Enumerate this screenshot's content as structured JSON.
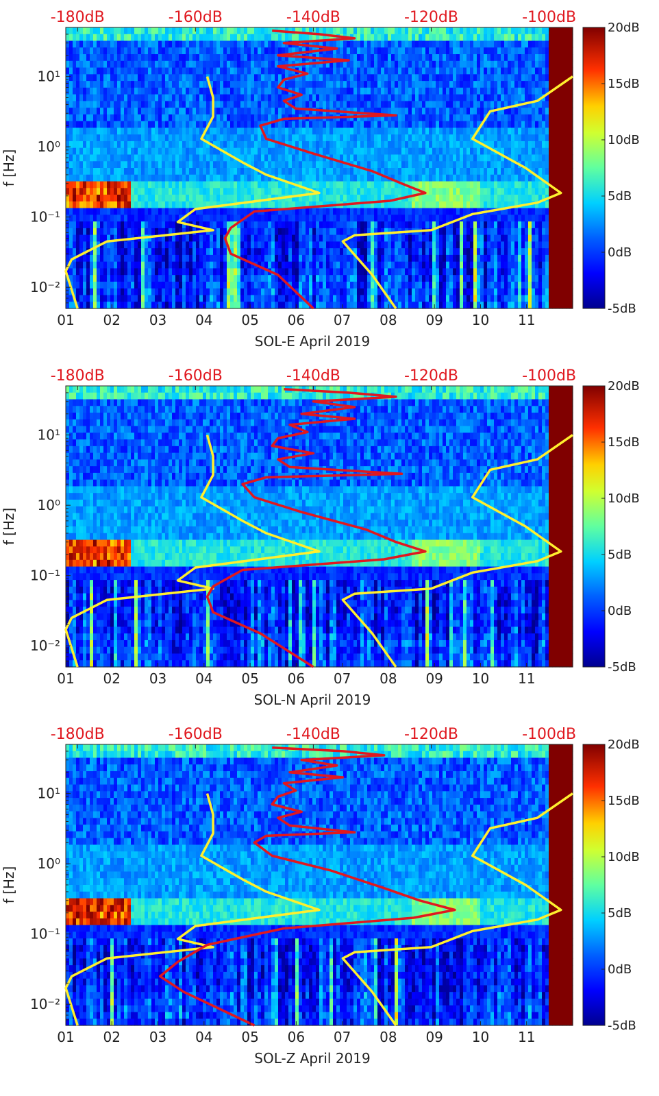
{
  "figure": {
    "description_free": true
  },
  "colorbar": {
    "ticks": [
      {
        "value": 20,
        "label": "20dB"
      },
      {
        "value": 15,
        "label": "15dB"
      },
      {
        "value": 10,
        "label": "10dB"
      },
      {
        "value": 5,
        "label": "5dB"
      },
      {
        "value": 0,
        "label": "0dB"
      },
      {
        "value": -5,
        "label": "-5dB"
      }
    ],
    "range": [
      -5,
      20
    ],
    "colors": [
      "#00008f",
      "#0000ff",
      "#0080ff",
      "#00ffff",
      "#80ff80",
      "#ffff00",
      "#ff8000",
      "#ff0000",
      "#800000"
    ]
  },
  "line_colors": {
    "noise_model": "#ffef2e",
    "psd": "#e0181f",
    "top_axis": "#e0181f"
  },
  "chart_data": [
    {
      "type": "heatmap",
      "xlabel": "SOL-E April 2019",
      "ylabel": "f [Hz]",
      "x_ticks": [
        "01",
        "02",
        "03",
        "04",
        "05",
        "06",
        "07",
        "08",
        "09",
        "10",
        "11"
      ],
      "xlim": [
        1,
        12
      ],
      "y_ticks": [
        {
          "value": 10,
          "label": "10¹"
        },
        {
          "value": 1,
          "label": "10⁰"
        },
        {
          "value": 0.1,
          "label": "10⁻¹"
        },
        {
          "value": 0.01,
          "label": "10⁻²"
        }
      ],
      "ylim": [
        0.005,
        50
      ],
      "top_axis_ticks": [
        {
          "value": -180,
          "label": "-180dB"
        },
        {
          "value": -160,
          "label": "-160dB"
        },
        {
          "value": -140,
          "label": "-140dB"
        },
        {
          "value": -120,
          "label": "-120dB"
        },
        {
          "value": -100,
          "label": "-100dB"
        }
      ],
      "top_axis_range": [
        -182,
        -96
      ],
      "noise_model_low": [
        [
          -158,
          10
        ],
        [
          -157,
          5
        ],
        [
          -157,
          2.7
        ],
        [
          -159,
          1.3
        ],
        [
          -152,
          0.6
        ],
        [
          -148,
          0.4
        ],
        [
          -139,
          0.22
        ],
        [
          -160,
          0.13
        ],
        [
          -163,
          0.085
        ],
        [
          -157,
          0.065
        ],
        [
          -175,
          0.045
        ],
        [
          -181,
          0.025
        ],
        [
          -182,
          0.017
        ],
        [
          -180,
          0.005
        ]
      ],
      "noise_model_high": [
        [
          -96,
          10
        ],
        [
          -102,
          4.5
        ],
        [
          -110,
          3.2
        ],
        [
          -113,
          1.3
        ],
        [
          -104,
          0.5
        ],
        [
          -98,
          0.22
        ],
        [
          -102,
          0.16
        ],
        [
          -113,
          0.11
        ],
        [
          -120,
          0.065
        ],
        [
          -133,
          0.055
        ],
        [
          -135,
          0.045
        ],
        [
          -130,
          0.015
        ],
        [
          -126,
          0.005
        ]
      ],
      "psd_curve": [
        [
          -147,
          45
        ],
        [
          -139,
          40
        ],
        [
          -133,
          35
        ],
        [
          -145,
          30
        ],
        [
          -136,
          25
        ],
        [
          -146,
          20
        ],
        [
          -134,
          17
        ],
        [
          -146,
          14
        ],
        [
          -141,
          11
        ],
        [
          -145,
          9
        ],
        [
          -146,
          7
        ],
        [
          -142,
          5.5
        ],
        [
          -145,
          4.5
        ],
        [
          -143,
          3.5
        ],
        [
          -126,
          2.8
        ],
        [
          -145,
          2.5
        ],
        [
          -149,
          2
        ],
        [
          -148,
          1.3
        ],
        [
          -140,
          0.8
        ],
        [
          -130,
          0.45
        ],
        [
          -125,
          0.3
        ],
        [
          -121,
          0.22
        ],
        [
          -127,
          0.17
        ],
        [
          -150,
          0.12
        ],
        [
          -154,
          0.07
        ],
        [
          -155,
          0.05
        ],
        [
          -154,
          0.03
        ],
        [
          -146,
          0.015
        ],
        [
          -140,
          0.005
        ]
      ]
    },
    {
      "type": "heatmap",
      "xlabel": "SOL-N April 2019",
      "ylabel": "f [Hz]",
      "x_ticks": [
        "01",
        "02",
        "03",
        "04",
        "05",
        "06",
        "07",
        "08",
        "09",
        "10",
        "11"
      ],
      "xlim": [
        1,
        12
      ],
      "y_ticks": [
        {
          "value": 10,
          "label": "10¹"
        },
        {
          "value": 1,
          "label": "10⁰"
        },
        {
          "value": 0.1,
          "label": "10⁻¹"
        },
        {
          "value": 0.01,
          "label": "10⁻²"
        }
      ],
      "ylim": [
        0.005,
        50
      ],
      "top_axis_ticks": [
        {
          "value": -180,
          "label": "-180dB"
        },
        {
          "value": -160,
          "label": "-160dB"
        },
        {
          "value": -140,
          "label": "-140dB"
        },
        {
          "value": -120,
          "label": "-120dB"
        },
        {
          "value": -100,
          "label": "-100dB"
        }
      ],
      "top_axis_range": [
        -182,
        -96
      ],
      "noise_model_low": [
        [
          -158,
          10
        ],
        [
          -157,
          5
        ],
        [
          -157,
          2.7
        ],
        [
          -159,
          1.3
        ],
        [
          -152,
          0.6
        ],
        [
          -148,
          0.4
        ],
        [
          -139,
          0.22
        ],
        [
          -160,
          0.13
        ],
        [
          -163,
          0.085
        ],
        [
          -157,
          0.065
        ],
        [
          -175,
          0.045
        ],
        [
          -181,
          0.025
        ],
        [
          -182,
          0.017
        ],
        [
          -180,
          0.005
        ]
      ],
      "noise_model_high": [
        [
          -96,
          10
        ],
        [
          -102,
          4.5
        ],
        [
          -110,
          3.2
        ],
        [
          -113,
          1.3
        ],
        [
          -104,
          0.5
        ],
        [
          -98,
          0.22
        ],
        [
          -102,
          0.16
        ],
        [
          -113,
          0.11
        ],
        [
          -120,
          0.065
        ],
        [
          -133,
          0.055
        ],
        [
          -135,
          0.045
        ],
        [
          -130,
          0.015
        ],
        [
          -126,
          0.005
        ]
      ],
      "psd_curve": [
        [
          -145,
          45
        ],
        [
          -134,
          40
        ],
        [
          -126,
          35
        ],
        [
          -140,
          30
        ],
        [
          -133,
          25
        ],
        [
          -142,
          20
        ],
        [
          -133,
          17
        ],
        [
          -144,
          14
        ],
        [
          -141,
          11
        ],
        [
          -146,
          9
        ],
        [
          -147,
          7
        ],
        [
          -140,
          5.5
        ],
        [
          -146,
          4.5
        ],
        [
          -144,
          3.5
        ],
        [
          -125,
          2.8
        ],
        [
          -148,
          2.5
        ],
        [
          -152,
          2
        ],
        [
          -150,
          1.3
        ],
        [
          -142,
          0.8
        ],
        [
          -131,
          0.45
        ],
        [
          -126,
          0.3
        ],
        [
          -121,
          0.22
        ],
        [
          -128,
          0.17
        ],
        [
          -152,
          0.12
        ],
        [
          -157,
          0.07
        ],
        [
          -158,
          0.05
        ],
        [
          -157,
          0.03
        ],
        [
          -149,
          0.015
        ],
        [
          -140,
          0.005
        ]
      ]
    },
    {
      "type": "heatmap",
      "xlabel": "SOL-Z April 2019",
      "ylabel": "f [Hz]",
      "x_ticks": [
        "01",
        "02",
        "03",
        "04",
        "05",
        "06",
        "07",
        "08",
        "09",
        "10",
        "11"
      ],
      "xlim": [
        1,
        12
      ],
      "y_ticks": [
        {
          "value": 10,
          "label": "10¹"
        },
        {
          "value": 1,
          "label": "10⁰"
        },
        {
          "value": 0.1,
          "label": "10⁻¹"
        },
        {
          "value": 0.01,
          "label": "10⁻²"
        }
      ],
      "ylim": [
        0.005,
        50
      ],
      "top_axis_ticks": [
        {
          "value": -180,
          "label": "-180dB"
        },
        {
          "value": -160,
          "label": "-160dB"
        },
        {
          "value": -140,
          "label": "-140dB"
        },
        {
          "value": -120,
          "label": "-120dB"
        },
        {
          "value": -100,
          "label": "-100dB"
        }
      ],
      "top_axis_range": [
        -182,
        -96
      ],
      "noise_model_low": [
        [
          -158,
          10
        ],
        [
          -157,
          5
        ],
        [
          -157,
          2.7
        ],
        [
          -159,
          1.3
        ],
        [
          -152,
          0.6
        ],
        [
          -148,
          0.4
        ],
        [
          -139,
          0.22
        ],
        [
          -160,
          0.13
        ],
        [
          -163,
          0.085
        ],
        [
          -157,
          0.065
        ],
        [
          -175,
          0.045
        ],
        [
          -181,
          0.025
        ],
        [
          -182,
          0.017
        ],
        [
          -180,
          0.005
        ]
      ],
      "noise_model_high": [
        [
          -96,
          10
        ],
        [
          -102,
          4.5
        ],
        [
          -110,
          3.2
        ],
        [
          -113,
          1.3
        ],
        [
          -104,
          0.5
        ],
        [
          -98,
          0.22
        ],
        [
          -102,
          0.16
        ],
        [
          -113,
          0.11
        ],
        [
          -120,
          0.065
        ],
        [
          -133,
          0.055
        ],
        [
          -135,
          0.045
        ],
        [
          -130,
          0.015
        ],
        [
          -126,
          0.005
        ]
      ],
      "psd_curve": [
        [
          -147,
          45
        ],
        [
          -135,
          40
        ],
        [
          -128,
          35
        ],
        [
          -142,
          30
        ],
        [
          -136,
          25
        ],
        [
          -144,
          20
        ],
        [
          -135,
          17
        ],
        [
          -145,
          14
        ],
        [
          -143,
          11
        ],
        [
          -146,
          9
        ],
        [
          -147,
          7
        ],
        [
          -142,
          5.5
        ],
        [
          -146,
          4.5
        ],
        [
          -144,
          3.5
        ],
        [
          -133,
          2.8
        ],
        [
          -148,
          2.5
        ],
        [
          -150,
          2
        ],
        [
          -147,
          1.3
        ],
        [
          -137,
          0.8
        ],
        [
          -128,
          0.45
        ],
        [
          -122,
          0.3
        ],
        [
          -116,
          0.22
        ],
        [
          -123,
          0.17
        ],
        [
          -145,
          0.12
        ],
        [
          -158,
          0.07
        ],
        [
          -163,
          0.04
        ],
        [
          -166,
          0.025
        ],
        [
          -162,
          0.015
        ],
        [
          -150,
          0.005
        ]
      ]
    }
  ]
}
